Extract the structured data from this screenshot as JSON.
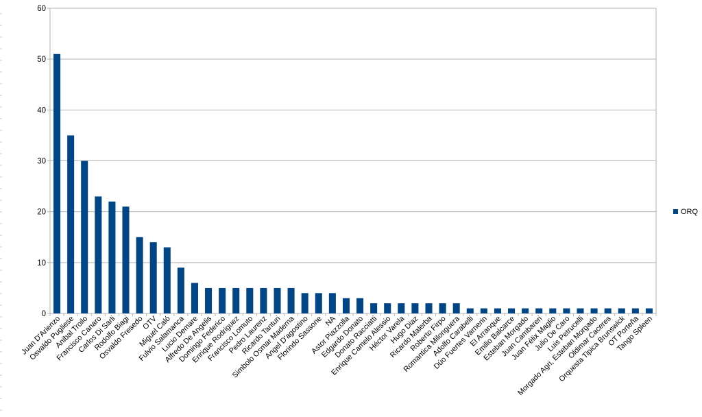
{
  "chart_data": {
    "type": "bar",
    "title": "",
    "xlabel": "",
    "ylabel": "",
    "ylim": [
      0,
      60
    ],
    "yticks": [
      0,
      10,
      20,
      30,
      40,
      50,
      60
    ],
    "grid": true,
    "legend_position": "right",
    "categories": [
      "Juan D'Arienzo",
      "Osvaldo Pugliese",
      "Anibal Troilo",
      "Francisco Canaro",
      "Carlos Di Sarli",
      "Rodolfo Biagi",
      "Osvaldo Fresedo",
      "OTV",
      "Miguel Caló",
      "Fulvio Salamanca",
      "Lucio Demare",
      "Alfredo De Angelis",
      "Domingo Federico",
      "Enrique Rodriguez",
      "Francisco Lomuto",
      "Pedro Laurenz",
      "Ricardo Tanturi",
      "Simbolo Osmar Maderna",
      "Angel D'agostino",
      "Florindo Sassone",
      "NA",
      "Astor Piazzolla",
      "Edgardo Donato",
      "Donato Racciatti",
      "Enrique Camelo Alessio",
      "Héctor Varela",
      "Hugo Diaz",
      "Ricardo Malerba",
      "Roberto Firpo",
      "Romantica Milonguera",
      "Adolfo Carabelli",
      "Dúo Fuertes Varnerin",
      "El Arranque",
      "Emilio Balcarce",
      "Esteban Morgado",
      "Juan Cambareri",
      "Juan Félix Maglio",
      "Julio De Caro",
      "Luis Petrucelli",
      "Morgado Agri, Esteban Morgado",
      "Oldimar Caceres",
      "Orquesta Tipica Brunswick",
      "OT Porteña",
      "Tango Spleen"
    ],
    "series": [
      {
        "name": "ORQ",
        "color": "#004586",
        "values": [
          51,
          35,
          30,
          23,
          22,
          21,
          15,
          14,
          13,
          9,
          6,
          5,
          5,
          5,
          5,
          5,
          5,
          5,
          4,
          4,
          4,
          3,
          3,
          2,
          2,
          2,
          2,
          2,
          2,
          2,
          1,
          1,
          1,
          1,
          1,
          1,
          1,
          1,
          1,
          1,
          1,
          1,
          1,
          1
        ]
      }
    ]
  }
}
